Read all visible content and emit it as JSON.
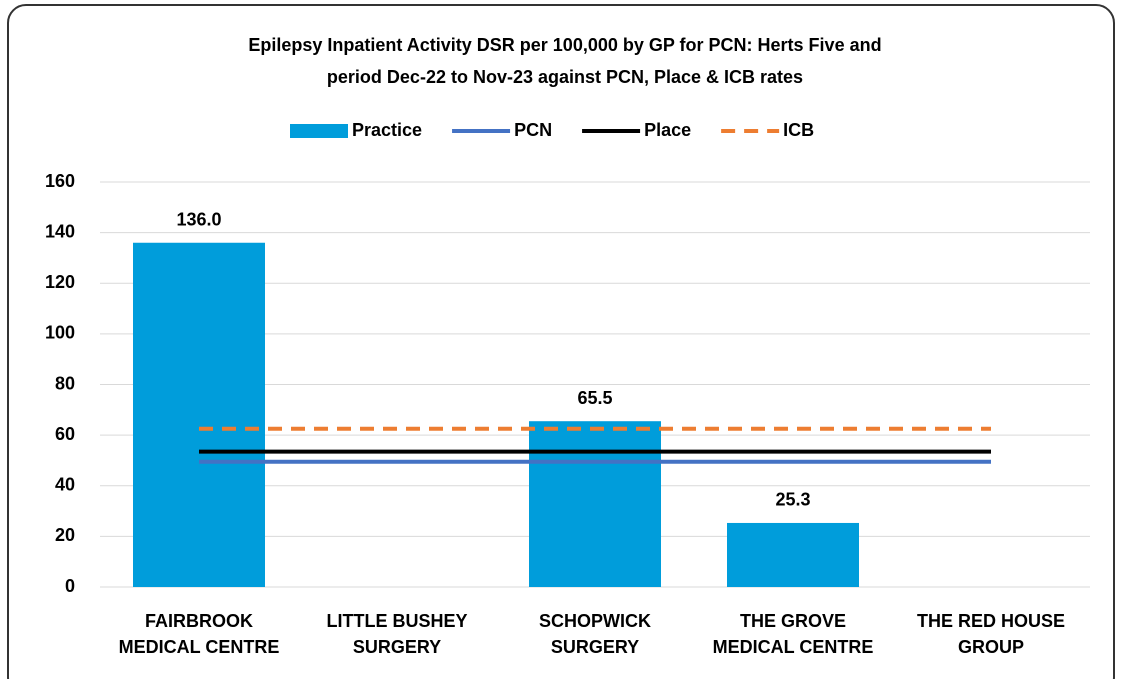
{
  "chart_data": {
    "type": "bar",
    "title": [
      "Epilepsy Inpatient Activity DSR per 100,000 by GP for PCN: Herts Five and",
      "period Dec-22 to Nov-23 against PCN, Place & ICB rates"
    ],
    "categories": [
      "FAIRBROOK MEDICAL CENTRE",
      "LITTLE BUSHEY SURGERY",
      "SCHOPWICK SURGERY",
      "THE GROVE MEDICAL CENTRE",
      "THE RED HOUSE GROUP"
    ],
    "series": [
      {
        "name": "Practice",
        "type": "bar",
        "color": "#009ddb",
        "values": [
          136.0,
          null,
          65.5,
          25.3,
          null
        ],
        "value_labels": [
          "136.0",
          null,
          "65.5",
          "25.3",
          null
        ]
      },
      {
        "name": "PCN",
        "type": "line",
        "color": "#4472c4",
        "values": [
          49.5,
          49.5,
          49.5,
          49.5,
          49.5
        ]
      },
      {
        "name": "Place",
        "type": "line",
        "color": "#000000",
        "values": [
          53.5,
          53.5,
          53.5,
          53.5,
          53.5
        ]
      },
      {
        "name": "ICB",
        "type": "line",
        "color": "#ed7d31",
        "dashed": true,
        "values": [
          62.5,
          62.5,
          62.5,
          62.5,
          62.5
        ]
      }
    ],
    "ylim": [
      0,
      160
    ],
    "yticks": [
      0,
      20,
      40,
      60,
      80,
      100,
      120,
      140,
      160
    ],
    "grid": true,
    "legend": "top"
  }
}
